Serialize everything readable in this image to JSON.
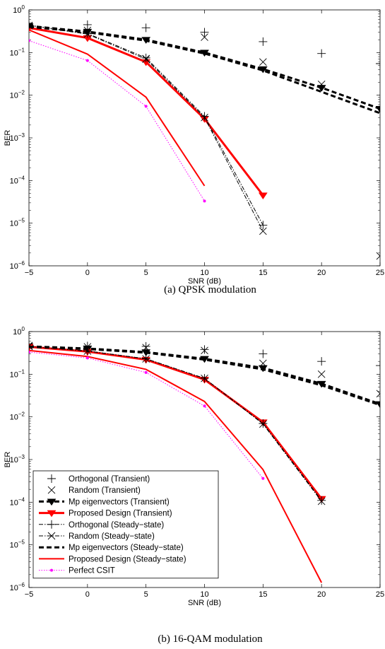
{
  "chart_data": [
    {
      "type": "line",
      "caption": "(a) QPSK modulation",
      "xlabel": "SNR (dB)",
      "ylabel": "BER",
      "xlim": [
        -5,
        25
      ],
      "ylim": [
        1e-06,
        1
      ],
      "yscale": "log",
      "grid": false,
      "x_ticks": [
        "−5",
        "0",
        "5",
        "10",
        "15",
        "20",
        "25"
      ],
      "y_ticks": [
        {
          "base": "10",
          "exp": "−6"
        },
        {
          "base": "10",
          "exp": "−5"
        },
        {
          "base": "10",
          "exp": "−4"
        },
        {
          "base": "10",
          "exp": "−3"
        },
        {
          "base": "10",
          "exp": "−2"
        },
        {
          "base": "10",
          "exp": "−1"
        },
        {
          "base": "10",
          "exp": "0"
        }
      ],
      "series": [
        {
          "name": "Orthogonal (Transient)",
          "style": "markers",
          "marker": "plus",
          "color": "#000000",
          "x": [
            -5,
            0,
            5,
            10,
            15,
            20,
            25
          ],
          "y": [
            0.45,
            0.45,
            0.38,
            0.3,
            0.18,
            0.095,
            0.055
          ]
        },
        {
          "name": "Random (Transient)",
          "style": "markers",
          "marker": "x",
          "color": "#000000",
          "x": [
            -5,
            0,
            5,
            10,
            15,
            20,
            25
          ],
          "y": [
            0.42,
            0.33,
            0.072,
            0.23,
            0.06,
            0.018,
            1.7e-06
          ]
        },
        {
          "name": "Mp eigenvectors (Transient)",
          "style": "dashed",
          "marker": "tri",
          "color": "#000000",
          "width": 3,
          "x": [
            -5,
            0,
            5,
            10,
            15,
            20,
            25
          ],
          "y": [
            0.42,
            0.31,
            0.2,
            0.1,
            0.041,
            0.015,
            0.0048
          ]
        },
        {
          "name": "Proposed Design (Transient)",
          "style": "solid",
          "marker": "tri",
          "color": "#ff0000",
          "width": 3,
          "x": [
            -5,
            0,
            5,
            10,
            15
          ],
          "y": [
            0.38,
            0.22,
            0.06,
            0.0028,
            4.5e-05
          ]
        },
        {
          "name": "Orthogonal (Steady−state)",
          "style": "dashdot",
          "marker": "plus",
          "color": "#000000",
          "width": 1,
          "x": [
            -5,
            0,
            5,
            10,
            15
          ],
          "y": [
            0.44,
            0.28,
            0.075,
            0.0032,
            9e-06
          ]
        },
        {
          "name": "Random (Steady−state)",
          "style": "dashdot",
          "marker": "x",
          "color": "#000000",
          "width": 1,
          "x": [
            -5,
            0,
            5,
            10,
            15
          ],
          "y": [
            0.43,
            0.27,
            0.07,
            0.003,
            6.5e-06
          ]
        },
        {
          "name": "Mp eigenvectors (Steady−state)",
          "style": "dashed",
          "marker": "none",
          "color": "#000000",
          "width": 3,
          "x": [
            -5,
            0,
            5,
            10,
            15,
            20,
            25
          ],
          "y": [
            0.4,
            0.3,
            0.19,
            0.095,
            0.038,
            0.012,
            0.0038
          ]
        },
        {
          "name": "Proposed Design (Steady−state)",
          "style": "solid",
          "marker": "none",
          "color": "#ff0000",
          "width": 2,
          "x": [
            -5,
            0,
            5,
            10
          ],
          "y": [
            0.34,
            0.092,
            0.009,
            7.5e-05
          ]
        },
        {
          "name": "Perfect CSIT",
          "style": "dotted",
          "marker": "dot",
          "color": "#ff00ff",
          "width": 1,
          "x": [
            -5,
            0,
            5,
            10
          ],
          "y": [
            0.19,
            0.065,
            0.0055,
            3.3e-05
          ]
        }
      ]
    },
    {
      "type": "line",
      "caption": "(b) 16-QAM modulation",
      "xlabel": "SNR (dB)",
      "ylabel": "BER",
      "xlim": [
        -5,
        25
      ],
      "ylim": [
        1e-06,
        1
      ],
      "yscale": "log",
      "grid": false,
      "legend_position": "bottom-left",
      "x_ticks": [
        "−5",
        "0",
        "5",
        "10",
        "15",
        "20",
        "25"
      ],
      "y_ticks": [
        {
          "base": "10",
          "exp": "−6"
        },
        {
          "base": "10",
          "exp": "−5"
        },
        {
          "base": "10",
          "exp": "−4"
        },
        {
          "base": "10",
          "exp": "−3"
        },
        {
          "base": "10",
          "exp": "−2"
        },
        {
          "base": "10",
          "exp": "−1"
        },
        {
          "base": "10",
          "exp": "0"
        }
      ],
      "series": [
        {
          "name": "Orthogonal (Transient)",
          "style": "markers",
          "marker": "plus",
          "color": "#000000",
          "x": [
            -5,
            0,
            5,
            10,
            15,
            20,
            25
          ],
          "y": [
            0.48,
            0.46,
            0.45,
            0.38,
            0.3,
            0.2,
            0.16
          ]
        },
        {
          "name": "Random (Transient)",
          "style": "markers",
          "marker": "x",
          "color": "#000000",
          "x": [
            -5,
            0,
            5,
            10,
            15,
            20,
            25
          ],
          "y": [
            0.47,
            0.44,
            0.42,
            0.36,
            0.18,
            0.1,
            0.035
          ]
        },
        {
          "name": "Mp eigenvectors (Transient)",
          "style": "dashed",
          "marker": "tri",
          "color": "#000000",
          "width": 3,
          "x": [
            -5,
            0,
            5,
            10,
            15,
            20,
            25
          ],
          "y": [
            0.45,
            0.4,
            0.33,
            0.23,
            0.14,
            0.06,
            0.02
          ]
        },
        {
          "name": "Proposed Design (Transient)",
          "style": "solid",
          "marker": "tri",
          "color": "#ff0000",
          "width": 3,
          "x": [
            -5,
            0,
            5,
            10,
            15,
            20
          ],
          "y": [
            0.44,
            0.34,
            0.22,
            0.075,
            0.0075,
            0.00012
          ]
        },
        {
          "name": "Orthogonal (Steady−state)",
          "style": "dashdot",
          "marker": "plus",
          "color": "#000000",
          "width": 1,
          "x": [
            -5,
            0,
            5,
            10,
            15,
            20
          ],
          "y": [
            0.45,
            0.35,
            0.23,
            0.08,
            0.007,
            0.00011
          ]
        },
        {
          "name": "Random (Steady−state)",
          "style": "dashdot",
          "marker": "x",
          "color": "#000000",
          "width": 1,
          "x": [
            -5,
            0,
            5,
            10,
            15,
            20
          ],
          "y": [
            0.45,
            0.35,
            0.23,
            0.08,
            0.0068,
            0.000105
          ]
        },
        {
          "name": "Mp eigenvectors (Steady−state)",
          "style": "dashed",
          "marker": "none",
          "color": "#000000",
          "width": 3,
          "x": [
            -5,
            0,
            5,
            10,
            15,
            20,
            25
          ],
          "y": [
            0.44,
            0.39,
            0.32,
            0.22,
            0.13,
            0.055,
            0.019
          ]
        },
        {
          "name": "Proposed Design (Steady−state)",
          "style": "solid",
          "marker": "none",
          "color": "#ff0000",
          "width": 2,
          "x": [
            -5,
            0,
            5,
            10,
            15,
            20
          ],
          "y": [
            0.36,
            0.26,
            0.13,
            0.023,
            0.00058,
            1.3e-06
          ]
        },
        {
          "name": "Perfect CSIT",
          "style": "dotted",
          "marker": "dot",
          "color": "#ff00ff",
          "width": 1,
          "x": [
            -5,
            0,
            5,
            10,
            15
          ],
          "y": [
            0.33,
            0.24,
            0.11,
            0.018,
            0.00036
          ]
        }
      ],
      "legend": [
        "Orthogonal (Transient)",
        "Random (Transient)",
        "Mp eigenvectors (Transient)",
        "Proposed Design (Transient)",
        "Orthogonal (Steady−state)",
        "Random (Steady−state)",
        "Mp eigenvectors (Steady−state)",
        "Proposed Design (Steady−state)",
        "Perfect CSIT"
      ]
    }
  ]
}
